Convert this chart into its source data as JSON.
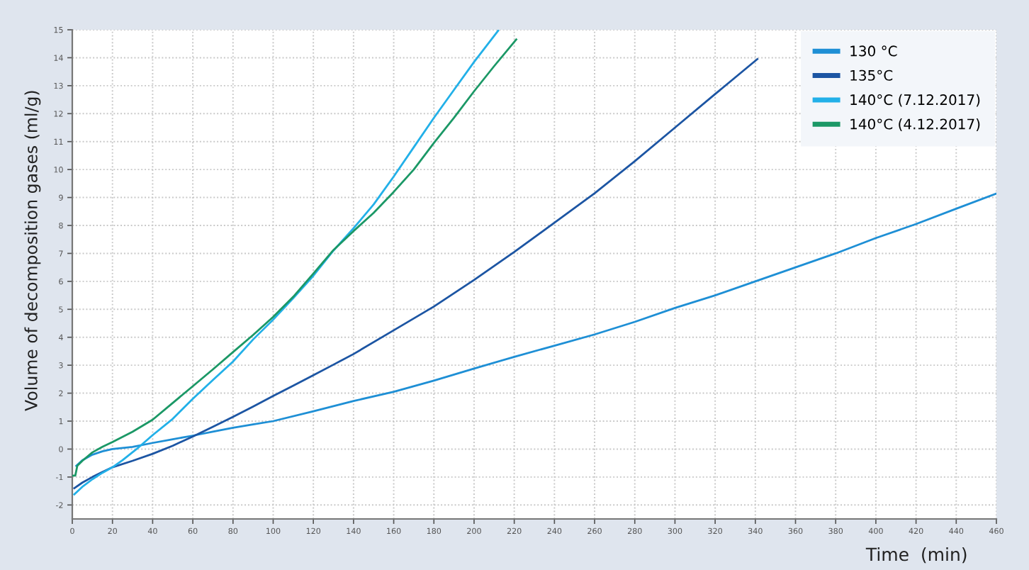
{
  "chart_data": {
    "type": "line",
    "xlabel": "Time  (min)",
    "ylabel": "Volume of decomposition gases (ml/g)",
    "xlim": [
      0,
      460
    ],
    "ylim": [
      -2.5,
      15
    ],
    "xticks": [
      0,
      20,
      40,
      60,
      80,
      100,
      120,
      140,
      160,
      180,
      200,
      220,
      240,
      260,
      280,
      300,
      320,
      340,
      360,
      380,
      400,
      420,
      440,
      460
    ],
    "yticks": [
      -2,
      -1,
      0,
      1,
      2,
      3,
      4,
      5,
      6,
      7,
      8,
      9,
      10,
      11,
      12,
      13,
      14,
      15
    ],
    "grid": true,
    "legend": "top right",
    "line_style": "solid",
    "marker": "none",
    "series": [
      {
        "name": "130 °C",
        "color": "#1e8fd5",
        "x": [
          2,
          5,
          10,
          15,
          20,
          30,
          40,
          50,
          60,
          70,
          80,
          90,
          100,
          120,
          140,
          160,
          180,
          200,
          220,
          240,
          260,
          280,
          300,
          320,
          340,
          360,
          380,
          400,
          420,
          440,
          460
        ],
        "values": [
          -0.6,
          -0.4,
          -0.2,
          -0.08,
          0.0,
          0.08,
          0.22,
          0.35,
          0.48,
          0.62,
          0.76,
          0.88,
          1.0,
          1.35,
          1.72,
          2.05,
          2.45,
          2.88,
          3.3,
          3.7,
          4.1,
          4.55,
          5.05,
          5.5,
          6.0,
          6.5,
          7.0,
          7.55,
          8.05,
          8.6,
          9.14
        ]
      },
      {
        "name": "135°C",
        "color": "#1c55a3",
        "x": [
          1,
          5,
          10,
          15,
          20,
          30,
          40,
          50,
          60,
          70,
          80,
          90,
          100,
          110,
          120,
          130,
          140,
          160,
          180,
          200,
          220,
          240,
          260,
          280,
          300,
          320,
          341
        ],
        "values": [
          -1.4,
          -1.2,
          -1.0,
          -0.82,
          -0.65,
          -0.42,
          -0.17,
          0.12,
          0.45,
          0.8,
          1.15,
          1.52,
          1.9,
          2.27,
          2.64,
          3.02,
          3.4,
          4.25,
          5.1,
          6.05,
          7.05,
          8.1,
          9.15,
          10.3,
          11.5,
          12.7,
          13.95
        ]
      },
      {
        "name": "140°C (7.12.2017)",
        "color": "#22b0e8",
        "x": [
          1,
          5,
          10,
          15,
          20,
          25,
          32,
          40,
          50,
          60,
          70,
          80,
          90,
          100,
          110,
          120,
          130,
          140,
          150,
          160,
          170,
          180,
          190,
          200,
          212
        ],
        "values": [
          -1.62,
          -1.35,
          -1.08,
          -0.85,
          -0.65,
          -0.4,
          0.0,
          0.5,
          1.08,
          1.8,
          2.47,
          3.13,
          3.92,
          4.63,
          5.4,
          6.2,
          7.1,
          7.9,
          8.75,
          9.75,
          10.8,
          11.85,
          12.85,
          13.85,
          14.97
        ]
      },
      {
        "name": "140°C (4.12.2017)",
        "color": "#1b9866",
        "x": [
          0.3,
          1.5,
          2.5,
          5,
          10,
          15,
          20,
          30,
          40,
          50,
          60,
          70,
          80,
          90,
          100,
          110,
          120,
          130,
          140,
          150,
          160,
          170,
          180,
          190,
          200,
          210,
          221
        ],
        "values": [
          -0.95,
          -0.95,
          -0.6,
          -0.42,
          -0.12,
          0.08,
          0.25,
          0.62,
          1.05,
          1.65,
          2.25,
          2.85,
          3.47,
          4.08,
          4.73,
          5.45,
          6.28,
          7.12,
          7.8,
          8.45,
          9.2,
          10.0,
          10.95,
          11.85,
          12.8,
          13.7,
          14.65
        ]
      }
    ]
  }
}
